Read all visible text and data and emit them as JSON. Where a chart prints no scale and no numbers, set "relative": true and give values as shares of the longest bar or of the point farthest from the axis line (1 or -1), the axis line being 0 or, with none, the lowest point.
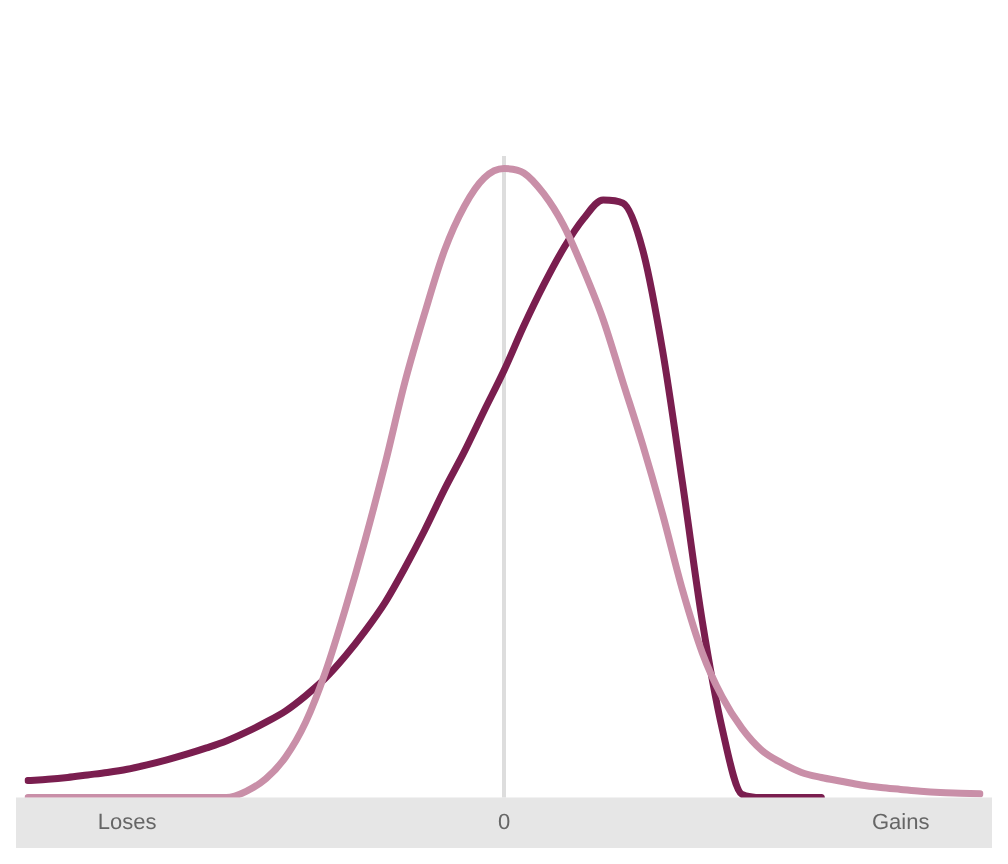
{
  "chart_data": {
    "type": "line",
    "relative": true,
    "grid": false,
    "legend": false,
    "marker": "none",
    "line_style": "solid",
    "categories": [
      null,
      null,
      null,
      null,
      null,
      "Loses",
      null,
      null,
      null,
      null,
      null,
      null,
      null,
      null,
      null,
      null,
      null,
      null,
      null,
      null,
      null,
      null,
      null,
      null,
      "0",
      null,
      null,
      null,
      null,
      null,
      null,
      null,
      null,
      null,
      null,
      null,
      null,
      null,
      null,
      null,
      null,
      null,
      null,
      null,
      "Gains",
      null,
      null,
      null,
      null
    ],
    "ref_lines": [
      {
        "axis": "x",
        "value": "0",
        "color": "#dddddd"
      }
    ],
    "series": [
      {
        "color": "#c98fa8",
        "values": [
          0,
          0,
          0,
          0,
          0,
          0,
          0,
          0,
          0,
          0,
          0,
          0.01,
          0.03,
          0.065,
          0.12,
          0.2,
          0.3,
          0.41,
          0.53,
          0.66,
          0.77,
          0.87,
          0.94,
          0.985,
          1,
          0.993,
          0.96,
          0.91,
          0.84,
          0.76,
          0.66,
          0.56,
          0.45,
          0.33,
          0.23,
          0.16,
          0.11,
          0.075,
          0.055,
          0.04,
          0.032,
          0.026,
          0.02,
          0.016,
          0.013,
          0.01,
          0.008,
          0.007,
          0.006
        ]
      },
      {
        "color": "#7a1e4f",
        "values": [
          0.027,
          0.029,
          0.032,
          0.036,
          0.04,
          0.045,
          0.052,
          0.06,
          0.069,
          0.079,
          0.09,
          0.104,
          0.12,
          0.138,
          0.162,
          0.19,
          0.225,
          0.265,
          0.31,
          0.365,
          0.425,
          0.49,
          0.55,
          0.615,
          0.679,
          0.75,
          0.815,
          0.873,
          0.92,
          0.95,
          0.945,
          0.87,
          0.71,
          0.5,
          0.28,
          0.11,
          0.005,
          0,
          0,
          0,
          0,
          null,
          null,
          null,
          null,
          null,
          null,
          null,
          null
        ]
      }
    ]
  }
}
